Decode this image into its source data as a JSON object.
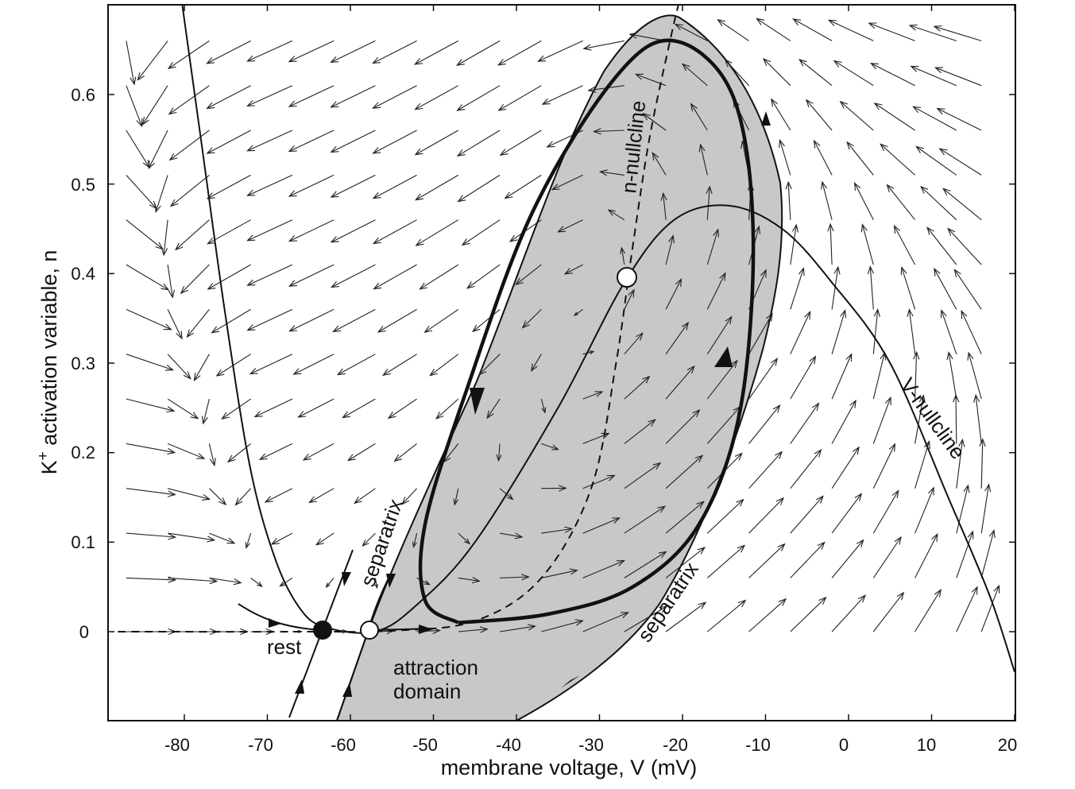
{
  "chart_data": {
    "type": "phase-plane",
    "xlabel": "membrane voltage, V (mV)",
    "ylabel": {
      "base": "K",
      "sup": "+",
      "rest": " activation variable, n"
    },
    "xlim": [
      -88,
      21
    ],
    "ylim": [
      -0.1,
      0.7
    ],
    "xticks": [
      "-80",
      "-70",
      "-60",
      "-50",
      "-40",
      "-30",
      "-20",
      "-10",
      "0",
      "10",
      "20"
    ],
    "yticks": [
      "0",
      "0.1",
      "0.2",
      "0.3",
      "0.4",
      "0.5",
      "0.6"
    ],
    "annotations": {
      "n_nullcline": "n-nullcline",
      "v_nullcline": "V-nullcline",
      "separatrix_left": "separatrix",
      "separatrix_right": "separatrix",
      "rest": "rest",
      "attraction_line1": "attraction",
      "attraction_line2": "domain"
    },
    "equilibria": [
      {
        "label": "rest",
        "V": -62.5,
        "n": 0.0,
        "stability": "stable"
      },
      {
        "V": -56.7,
        "n": 0.0,
        "stability": "saddle"
      },
      {
        "V": -27,
        "n": 0.395,
        "stability": "unstable"
      }
    ],
    "limit_cycle": [
      [
        -47,
        0.01
      ],
      [
        -36,
        0.02
      ],
      [
        -26,
        0.05
      ],
      [
        -18,
        0.12
      ],
      [
        -13,
        0.25
      ],
      [
        -11.5,
        0.45
      ],
      [
        -14,
        0.6
      ],
      [
        -21,
        0.66
      ],
      [
        -28,
        0.62
      ],
      [
        -38,
        0.47
      ],
      [
        -46,
        0.27
      ],
      [
        -51,
        0.12
      ],
      [
        -51,
        0.035
      ],
      [
        -47,
        0.01
      ]
    ],
    "v_nullcline": [
      [
        -81,
        0.75
      ],
      [
        -78,
        0.55
      ],
      [
        -75,
        0.35
      ],
      [
        -72,
        0.18
      ],
      [
        -69,
        0.08
      ],
      [
        -66,
        0.025
      ],
      [
        -63,
        0.005
      ],
      [
        -57,
        0.0
      ],
      [
        -52,
        0.03
      ],
      [
        -45,
        0.1
      ],
      [
        -35,
        0.25
      ],
      [
        -27,
        0.39
      ],
      [
        -21,
        0.46
      ],
      [
        -14.5,
        0.476
      ],
      [
        -8,
        0.45
      ],
      [
        -2,
        0.39
      ],
      [
        5,
        0.3
      ],
      [
        12,
        0.15
      ],
      [
        17,
        0.04
      ],
      [
        20,
        -0.045
      ]
    ],
    "n_nullcline": [
      [
        -88,
        0.0
      ],
      [
        -65,
        0.0
      ],
      [
        -55,
        0.001
      ],
      [
        -45,
        0.012
      ],
      [
        -37,
        0.06
      ],
      [
        -31,
        0.16
      ],
      [
        -28,
        0.3
      ],
      [
        -26,
        0.43
      ],
      [
        -24,
        0.55
      ],
      [
        -21.5,
        0.66
      ],
      [
        -20.5,
        0.7
      ]
    ],
    "arrow_field_note": "",
    "colors": {
      "attraction_domain": "#c8c8c8",
      "curves": "#111111",
      "field": "#222222"
    }
  }
}
